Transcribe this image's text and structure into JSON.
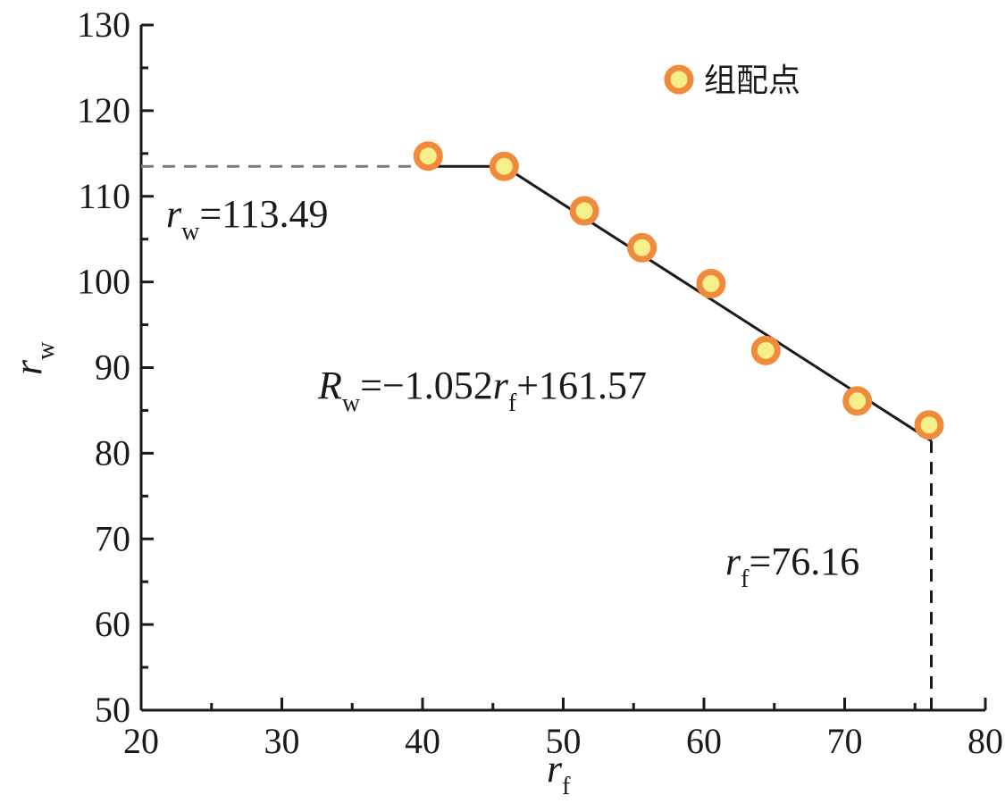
{
  "chart_data": {
    "type": "scatter",
    "xlabel": {
      "main": "r",
      "sub": "f"
    },
    "ylabel": {
      "main": "r",
      "sub": "w"
    },
    "xlim": [
      20,
      80
    ],
    "ylim": [
      50,
      130
    ],
    "x_ticks": [
      "20",
      "30",
      "40",
      "50",
      "60",
      "70",
      "80"
    ],
    "y_ticks": [
      "50",
      "60",
      "70",
      "80",
      "90",
      "100",
      "110",
      "120",
      "130"
    ],
    "legend": {
      "label": "组配点",
      "position": "top-right"
    },
    "series": [
      {
        "name": "组配点",
        "marker_color": "#f08a3c",
        "fill_color": "#f7ef8a",
        "points": [
          {
            "x": 40.4,
            "y": 114.7
          },
          {
            "x": 45.8,
            "y": 113.5
          },
          {
            "x": 51.5,
            "y": 108.3
          },
          {
            "x": 55.6,
            "y": 104.0
          },
          {
            "x": 60.5,
            "y": 99.8
          },
          {
            "x": 64.4,
            "y": 92.0
          },
          {
            "x": 70.9,
            "y": 86.1
          },
          {
            "x": 76.0,
            "y": 83.3
          }
        ]
      }
    ],
    "fit_line": {
      "segments": [
        {
          "x": [
            40.0,
            45.8
          ],
          "y": [
            113.49,
            113.49
          ]
        },
        {
          "x": [
            45.8,
            76.16
          ],
          "y": [
            113.49,
            81.45
          ]
        }
      ]
    },
    "reference_lines": {
      "horizontal": {
        "y": 113.49,
        "x_from": 20,
        "x_to": 40.0
      },
      "vertical": {
        "x": 76.16,
        "y_from": 50,
        "y_to": 81.45
      }
    },
    "annotations": {
      "rw_value": {
        "main": "r",
        "sub": "w",
        "text": "=113.49"
      },
      "equation": {
        "main": "R",
        "sub": "w",
        "mid": "=−1.052",
        "var": "r",
        "var_sub": "f",
        "tail": "+161.57"
      },
      "rf_value": {
        "main": "r",
        "sub": "f",
        "text": "=76.16"
      }
    }
  }
}
